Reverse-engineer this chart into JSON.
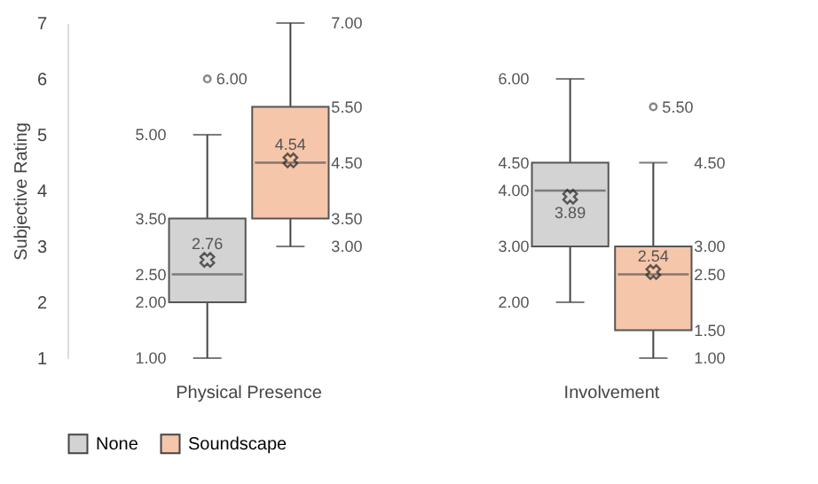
{
  "chart_data": {
    "type": "box",
    "ylabel": "Subjective Rating",
    "categories": [
      "Physical Presence",
      "Involvement"
    ],
    "ylim": [
      1,
      7
    ],
    "yticks": [
      1,
      2,
      3,
      4,
      5,
      6,
      7
    ],
    "legend": "bottom",
    "marker": "cross",
    "series": [
      {
        "name": "None",
        "color": "#d3d3d3",
        "boxes": [
          {
            "low": 1,
            "q1": 2,
            "median": 2.5,
            "q3": 3.5,
            "high": 5,
            "mean": 2.76,
            "outliers": [
              6
            ]
          },
          {
            "low": 2,
            "q1": 3,
            "median": 4,
            "q3": 4.5,
            "high": 6,
            "mean": 3.89
          }
        ]
      },
      {
        "name": "Soundscape",
        "color": "#f5c6aa",
        "boxes": [
          {
            "low": 3,
            "q1": 3.5,
            "median": 4.5,
            "q3": 5.5,
            "high": 7,
            "mean": 4.54
          },
          {
            "low": 1,
            "q1": 1.5,
            "median": 2.5,
            "q3": 3,
            "high": 4.5,
            "mean": 2.54,
            "outliers": [
              5.5
            ]
          }
        ]
      }
    ],
    "annotations": [
      "1.00",
      "2.00",
      "2.50",
      "3.50",
      "5.00",
      "2.76",
      "6.00",
      "2.00",
      "3.00",
      "4.00",
      "4.50",
      "6.00",
      "3.89",
      "3.00",
      "3.50",
      "4.50",
      "5.50",
      "7.00",
      "4.54",
      "1.00",
      "1.50",
      "2.50",
      "3.00",
      "4.50",
      "2.54",
      "5.50"
    ]
  }
}
